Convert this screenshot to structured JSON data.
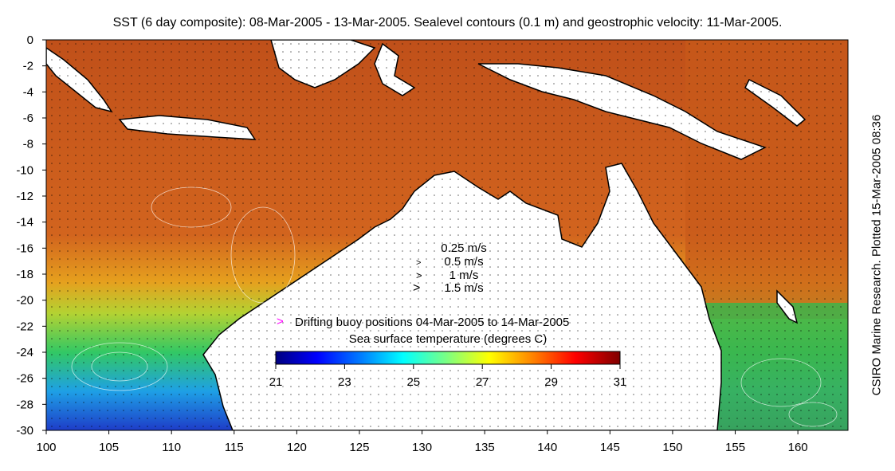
{
  "title": "SST (6 day composite): 08-Mar-2005 - 13-Mar-2005. Sealevel contours (0.1 m) and geostrophic velocity: 11-Mar-2005.",
  "credit": "CSIRO Marine Research. Plotted 15-Mar-2005 08:36",
  "lon_ticks": [
    "100",
    "105",
    "110",
    "115",
    "120",
    "125",
    "130",
    "135",
    "140",
    "145",
    "150",
    "155",
    "160"
  ],
  "lat_ticks": [
    "0",
    "-2",
    "-4",
    "-6",
    "-8",
    "-10",
    "-12",
    "-14",
    "-16",
    "-18",
    "-20",
    "-22",
    "-24",
    "-26",
    "-28",
    "-30"
  ],
  "velocity_legend": [
    {
      "label": "0.25 m/s",
      "symbol": "·"
    },
    {
      "label": "0.5 m/s",
      "symbol": ">"
    },
    {
      "label": "1 m/s",
      "symbol": ">"
    },
    {
      "label": "1.5 m/s",
      "symbol": ">"
    }
  ],
  "buoy_legend": {
    "label": "Drifting buoy positions 04-Mar-2005 to 14-Mar-2005",
    "color": "#ff00ff"
  },
  "colorbar": {
    "title": "Sea surface temperature (degrees C)",
    "ticks": [
      "21",
      "23",
      "25",
      "27",
      "29",
      "31"
    ],
    "colors": [
      "#00007f",
      "#0000ff",
      "#007fff",
      "#00ffff",
      "#7fff7f",
      "#ffff00",
      "#ff7f00",
      "#ff0000",
      "#7f0000"
    ]
  },
  "map": {
    "lon_range": [
      100,
      164
    ],
    "lat_range": [
      -30,
      0
    ],
    "land_color": "#ffffff",
    "coast_color": "#000000"
  }
}
